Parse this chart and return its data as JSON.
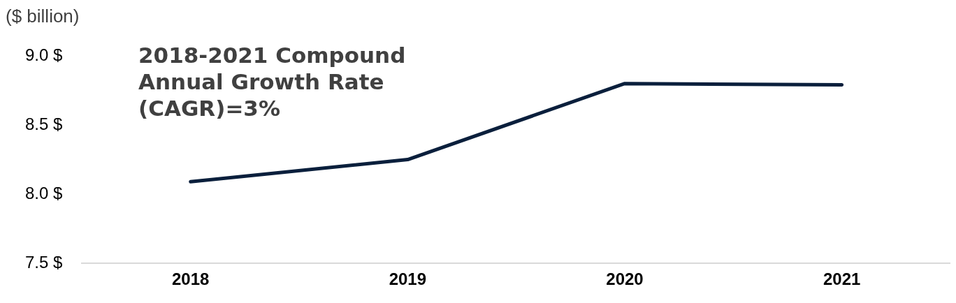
{
  "chart_data": {
    "type": "line",
    "ylabel": "($ billion)",
    "annotations": [
      "2018-2021 Compound Annual Growth Rate (CAGR)=3%"
    ],
    "categories": [
      "2018",
      "2019",
      "2020",
      "2021"
    ],
    "series": [
      {
        "color": "#0a1f3c",
        "values": [
          8.09,
          8.25,
          8.8,
          8.79
        ]
      }
    ],
    "ylim": [
      7.5,
      9.0
    ],
    "yticks": [
      {
        "value": 7.5,
        "label": "7.5 $"
      },
      {
        "value": 8.0,
        "label": "8.0 $"
      },
      {
        "value": 8.5,
        "label": "8.5 $"
      },
      {
        "value": 9.0,
        "label": "9.0 $"
      }
    ],
    "grid": false,
    "legend": false,
    "marker": "none",
    "line_style": "solid"
  }
}
